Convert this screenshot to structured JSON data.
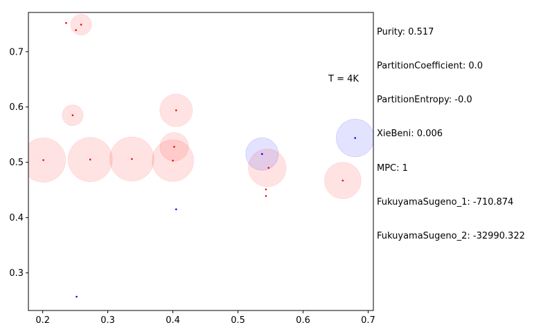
{
  "chart_data": {
    "type": "scatter",
    "title": "",
    "xlabel": "",
    "ylabel": "",
    "xlim": [
      0.178,
      0.708
    ],
    "ylim": [
      0.232,
      0.771
    ],
    "xticks": [
      "0.2",
      "0.3",
      "0.4",
      "0.5",
      "0.6",
      "0.7"
    ],
    "yticks": [
      "0.3",
      "0.4",
      "0.5",
      "0.6",
      "0.7"
    ],
    "grid": false,
    "annotation": "T = 4K",
    "colors": {
      "red": "#ff0000",
      "blue": "#0000ff"
    },
    "circles": [
      {
        "x": 0.259,
        "y": 0.749,
        "r": 0.016,
        "color": "red"
      },
      {
        "x": 0.246,
        "y": 0.585,
        "r": 0.016,
        "color": "red"
      },
      {
        "x": 0.405,
        "y": 0.594,
        "r": 0.025,
        "color": "red"
      },
      {
        "x": 0.402,
        "y": 0.528,
        "r": 0.022,
        "color": "red"
      },
      {
        "x": 0.201,
        "y": 0.504,
        "r": 0.034,
        "color": "red"
      },
      {
        "x": 0.273,
        "y": 0.505,
        "r": 0.034,
        "color": "red"
      },
      {
        "x": 0.337,
        "y": 0.506,
        "r": 0.034,
        "color": "red"
      },
      {
        "x": 0.4,
        "y": 0.503,
        "r": 0.032,
        "color": "red"
      },
      {
        "x": 0.545,
        "y": 0.49,
        "r": 0.029,
        "color": "red"
      },
      {
        "x": 0.661,
        "y": 0.467,
        "r": 0.028,
        "color": "red"
      },
      {
        "x": 0.537,
        "y": 0.515,
        "r": 0.025,
        "color": "blue"
      },
      {
        "x": 0.68,
        "y": 0.544,
        "r": 0.029,
        "color": "blue"
      }
    ],
    "points": [
      {
        "x": 0.236,
        "y": 0.752,
        "color": "red"
      },
      {
        "x": 0.259,
        "y": 0.749,
        "color": "red"
      },
      {
        "x": 0.251,
        "y": 0.739,
        "color": "red"
      },
      {
        "x": 0.246,
        "y": 0.585,
        "color": "red"
      },
      {
        "x": 0.405,
        "y": 0.594,
        "color": "red"
      },
      {
        "x": 0.402,
        "y": 0.528,
        "color": "red"
      },
      {
        "x": 0.201,
        "y": 0.504,
        "color": "red"
      },
      {
        "x": 0.273,
        "y": 0.505,
        "color": "red"
      },
      {
        "x": 0.337,
        "y": 0.506,
        "color": "red"
      },
      {
        "x": 0.4,
        "y": 0.503,
        "color": "red"
      },
      {
        "x": 0.547,
        "y": 0.49,
        "color": "red"
      },
      {
        "x": 0.543,
        "y": 0.451,
        "color": "red"
      },
      {
        "x": 0.543,
        "y": 0.439,
        "color": "red"
      },
      {
        "x": 0.661,
        "y": 0.467,
        "color": "red"
      },
      {
        "x": 0.537,
        "y": 0.515,
        "color": "blue"
      },
      {
        "x": 0.68,
        "y": 0.544,
        "color": "blue"
      },
      {
        "x": 0.405,
        "y": 0.415,
        "color": "blue"
      },
      {
        "x": 0.252,
        "y": 0.257,
        "color": "blue"
      }
    ]
  },
  "metrics": [
    "Purity: 0.517",
    "PartitionCoefficient: 0.0",
    "PartitionEntropy: -0.0",
    "XieBeni: 0.006",
    "MPC: 1",
    "FukuyamaSugeno_1: -710.874",
    "FukuyamaSugeno_2: -32990.322"
  ]
}
